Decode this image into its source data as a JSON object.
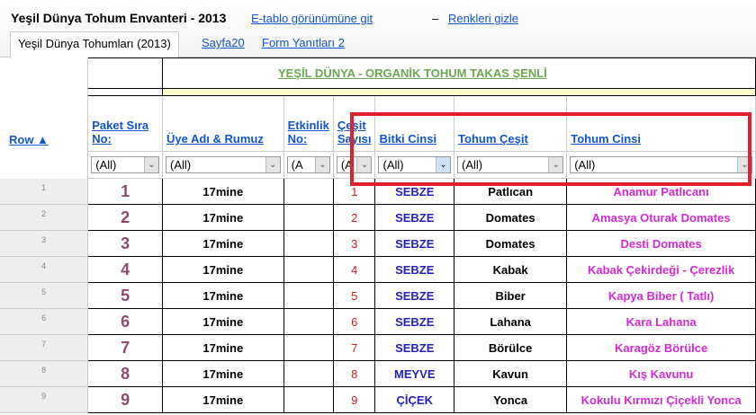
{
  "header": {
    "title": "Yeşil Dünya Tohum Envanteri - 2013",
    "links": [
      "E-tablo görünümüne git",
      "Renkleri gizle"
    ],
    "separator": "–"
  },
  "tabs": [
    {
      "label": "Yeşil Dünya Tohumları (2013)",
      "active": true
    },
    {
      "label": "Sayfa20"
    },
    {
      "label": "Form Yanıtları 2"
    }
  ],
  "banner": "YEŞİL DÜNYA - ORGANİK TOHUM TAKAS ŞENLİ",
  "columns": {
    "row": "Row ▲",
    "a": "Paket Sıra No:",
    "b": "Üye Adı & Rumuz",
    "c": "Etkinlik No:",
    "d": "Çeşit Sayısı",
    "e": "Bitki Cinsi",
    "f": "Tohum Çeşit",
    "g": "Tohum Cinsi"
  },
  "filters": {
    "a": "(All)",
    "b": "(All)",
    "c": "(A",
    "d": "(A",
    "e": "(All)",
    "f": "(All)",
    "g": "(All)"
  },
  "rows": [
    {
      "n": "1",
      "a": "1",
      "b": "17mine",
      "c": "",
      "d": "1",
      "e": "SEBZE",
      "f": "Patlıcan",
      "g": "Anamur Patlıcanı"
    },
    {
      "n": "2",
      "a": "2",
      "b": "17mine",
      "c": "",
      "d": "2",
      "e": "SEBZE",
      "f": "Domates",
      "g": "Amasya Oturak Domates"
    },
    {
      "n": "3",
      "a": "3",
      "b": "17mine",
      "c": "",
      "d": "3",
      "e": "SEBZE",
      "f": "Domates",
      "g": "Desti Domates"
    },
    {
      "n": "4",
      "a": "4",
      "b": "17mine",
      "c": "",
      "d": "4",
      "e": "SEBZE",
      "f": "Kabak",
      "g": "Kabak Çekirdeği - Çerezlik"
    },
    {
      "n": "5",
      "a": "5",
      "b": "17mine",
      "c": "",
      "d": "5",
      "e": "SEBZE",
      "f": "Biber",
      "g": "Kapya Biber ( Tatlı)"
    },
    {
      "n": "6",
      "a": "6",
      "b": "17mine",
      "c": "",
      "d": "6",
      "e": "SEBZE",
      "f": "Lahana",
      "g": "Kara Lahana"
    },
    {
      "n": "7",
      "a": "7",
      "b": "17mine",
      "c": "",
      "d": "7",
      "e": "SEBZE",
      "f": "Börülce",
      "g": "Karagöz Börülce"
    },
    {
      "n": "8",
      "a": "8",
      "b": "17mine",
      "c": "",
      "d": "8",
      "e": "MEYVE",
      "f": "Kavun",
      "g": "Kış Kavunu"
    },
    {
      "n": "9",
      "a": "9",
      "b": "17mine",
      "c": "",
      "d": "9",
      "e": "ÇİÇEK",
      "f": "Yonca",
      "g": "Kokulu Kırmızı Çiçekli Yonca"
    }
  ],
  "colors": {
    "highlight_box": "#e0202a",
    "banner": "#6aa84f",
    "link": "#1155cc"
  }
}
